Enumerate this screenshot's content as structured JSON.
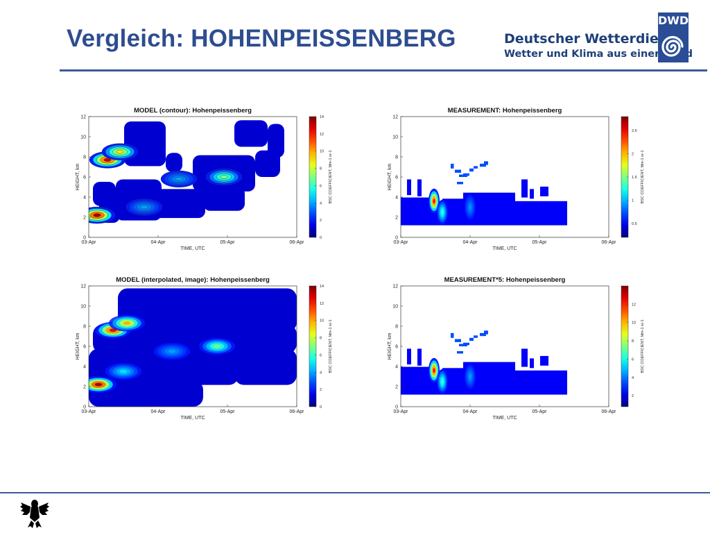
{
  "slide": {
    "title": "Vergleich: HOHENPEISSENBERG",
    "brand_line1": "Deutscher Wetterdienst",
    "brand_line2": "Wetter und Klima aus einer Hand",
    "logo_text": "DWD",
    "accent_color": "#2e4d8f",
    "logo_color": "#2a4d96"
  },
  "chart_data": [
    {
      "type": "heatmap",
      "title": "MODEL (contour): Hohenpeissenberg",
      "xlabel": "TIME, UTC",
      "ylabel": "HEIGHT, km",
      "x_ticks": [
        "03-Apr",
        "04-Apr",
        "05-Apr",
        "06-Apr"
      ],
      "y_ticks": [
        0,
        2,
        4,
        6,
        8,
        10,
        12
      ],
      "ylim": [
        0,
        12
      ],
      "colorbar_label": "BSC COEFFICIENT, Mm-1 sr-1",
      "colorbar_ticks": [
        0,
        2,
        4,
        6,
        8,
        10,
        12,
        14
      ],
      "colorbar_range": [
        0,
        14
      ],
      "style": "contour",
      "blobs": [
        {
          "time": 0.27,
          "height": 7.7,
          "value": 13
        },
        {
          "time": 0.45,
          "height": 8.5,
          "value": 9
        },
        {
          "time": 0.12,
          "height": 2.2,
          "value": 13.5
        },
        {
          "time": 1.95,
          "height": 6.0,
          "value": 7
        },
        {
          "time": 1.3,
          "height": 5.8,
          "value": 4
        },
        {
          "time": 0.8,
          "height": 3.0,
          "value": 4
        }
      ]
    },
    {
      "type": "heatmap",
      "title": "MEASUREMENT: Hohenpeissenberg",
      "xlabel": "TIME, UTC",
      "ylabel": "HEIGHT, km",
      "x_ticks": [
        "03-Apr",
        "04-Apr",
        "05-Apr",
        "06-Apr"
      ],
      "y_ticks": [
        0,
        2,
        4,
        6,
        8,
        10,
        12
      ],
      "ylim": [
        0,
        12
      ],
      "colorbar_label": "BSC COEFFICIENT, Mm-1 sr-1",
      "colorbar_ticks": [
        0.5,
        1,
        1.5,
        2,
        2.5
      ],
      "colorbar_range": [
        0.2,
        2.8
      ],
      "style": "image",
      "blobs": [
        {
          "time": 0.48,
          "height": 3.6,
          "value": 2.5
        },
        {
          "time": 0.6,
          "height": 2.5,
          "value": 1.3
        },
        {
          "time": 1.0,
          "height": 3.0,
          "value": 0.9
        }
      ]
    },
    {
      "type": "heatmap",
      "title": "MODEL (interpolated, image): Hohenpeissenberg",
      "xlabel": "TIME, UTC",
      "ylabel": "HEIGHT, km",
      "x_ticks": [
        "03-Apr",
        "04-Apr",
        "05-Apr",
        "06-Apr"
      ],
      "y_ticks": [
        0,
        2,
        4,
        6,
        8,
        10,
        12
      ],
      "ylim": [
        0,
        12
      ],
      "colorbar_label": "BSC COEFFICIENT, Mm-1 sr-1",
      "colorbar_ticks": [
        0,
        2,
        4,
        6,
        8,
        10,
        12,
        14
      ],
      "colorbar_range": [
        0,
        14
      ],
      "style": "image",
      "blobs": [
        {
          "time": 0.35,
          "height": 7.6,
          "value": 13
        },
        {
          "time": 0.55,
          "height": 8.3,
          "value": 10
        },
        {
          "time": 0.14,
          "height": 2.2,
          "value": 14
        },
        {
          "time": 1.85,
          "height": 6.0,
          "value": 7
        },
        {
          "time": 1.2,
          "height": 5.5,
          "value": 4
        },
        {
          "time": 0.5,
          "height": 3.5,
          "value": 5
        }
      ]
    },
    {
      "type": "heatmap",
      "title": "MEASUREMENT*5: Hohenpeissenberg",
      "xlabel": "TIME, UTC",
      "ylabel": "HEIGHT, km",
      "x_ticks": [
        "03-Apr",
        "04-Apr",
        "05-Apr",
        "06-Apr"
      ],
      "y_ticks": [
        0,
        2,
        4,
        6,
        8,
        10,
        12
      ],
      "ylim": [
        0,
        12
      ],
      "colorbar_label": "BSC COEFFICIENT, Mm-1 sr-1",
      "colorbar_ticks": [
        2,
        4,
        6,
        8,
        10,
        12
      ],
      "colorbar_range": [
        0.8,
        14
      ],
      "style": "image",
      "blobs": [
        {
          "time": 0.48,
          "height": 3.6,
          "value": 12.5
        },
        {
          "time": 0.6,
          "height": 2.5,
          "value": 6.5
        },
        {
          "time": 1.0,
          "height": 3.0,
          "value": 4.5
        }
      ]
    }
  ]
}
